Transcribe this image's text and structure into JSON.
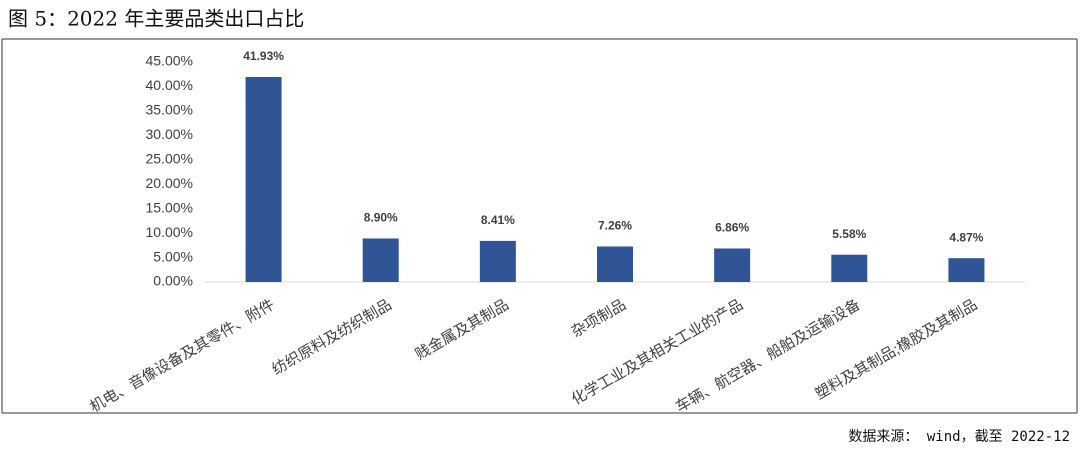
{
  "chart_data": {
    "type": "bar",
    "title": "图 5：2022 年主要品类出口占比",
    "source": "数据来源： wind，截至 2022-12",
    "categories": [
      "机电、音像设备及其零件、附件",
      "纺织原料及纺织制品",
      "贱金属及其制品",
      "杂项制品",
      "化学工业及其相关工业的产品",
      "车辆、航空器、船舶及运输设备",
      "塑料及其制品;橡胶及其制品"
    ],
    "values": [
      41.93,
      8.9,
      8.41,
      7.26,
      6.86,
      5.58,
      4.87
    ],
    "value_labels": [
      "41.93%",
      "8.90%",
      "8.41%",
      "7.26%",
      "6.86%",
      "5.58%",
      "4.87%"
    ],
    "color": "#2f5597",
    "ylim": [
      0,
      45
    ],
    "yticks": [
      {
        "value": 0,
        "label": "0.00%"
      },
      {
        "value": 5,
        "label": "5.00%"
      },
      {
        "value": 10,
        "label": "10.00%"
      },
      {
        "value": 15,
        "label": "15.00%"
      },
      {
        "value": 20,
        "label": "20.00%"
      },
      {
        "value": 25,
        "label": "25.00%"
      },
      {
        "value": 30,
        "label": "30.00%"
      },
      {
        "value": 35,
        "label": "35.00%"
      },
      {
        "value": 40,
        "label": "40.00%"
      },
      {
        "value": 45,
        "label": "45.00%"
      }
    ]
  }
}
